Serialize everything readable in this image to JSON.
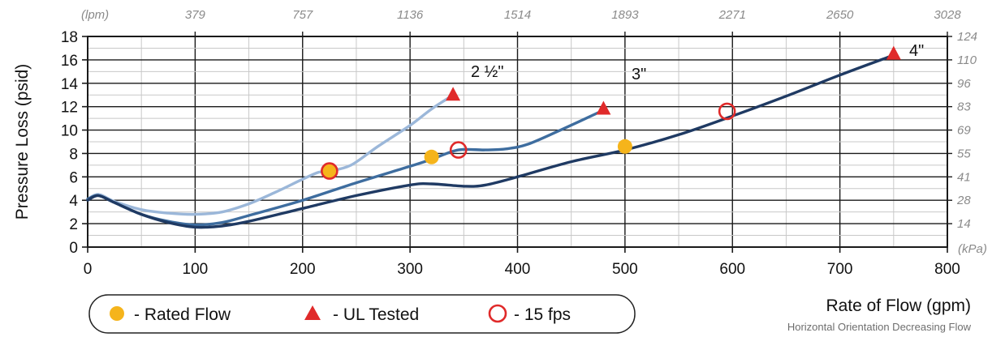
{
  "chart_data": {
    "type": "line",
    "xlabel": "Rate of Flow (gpm)",
    "ylabel": "Pressure Loss (psid)",
    "subtitle": "Horizontal Orientation Decreasing Flow",
    "x_range": [
      0,
      800
    ],
    "y_range": [
      0,
      18
    ],
    "x_ticks": [
      "0",
      "100",
      "200",
      "300",
      "400",
      "500",
      "600",
      "700",
      "800"
    ],
    "y_ticks": [
      "0",
      "2",
      "4",
      "6",
      "8",
      "10",
      "12",
      "14",
      "16",
      "18"
    ],
    "top_unit": "(lpm)",
    "top_ticks": [
      "379",
      "757",
      "1136",
      "1514",
      "1893",
      "2271",
      "2650",
      "3028"
    ],
    "right_unit": "(kPa)",
    "right_ticks": [
      "14",
      "28",
      "41",
      "55",
      "69",
      "83",
      "96",
      "110",
      "124"
    ],
    "grid": true,
    "series": [
      {
        "name": "2 ½\"",
        "color": "#9bb7d9",
        "points": [
          [
            0,
            4.1
          ],
          [
            10,
            4.5
          ],
          [
            25,
            3.9
          ],
          [
            50,
            3.2
          ],
          [
            75,
            2.9
          ],
          [
            100,
            2.8
          ],
          [
            125,
            3.0
          ],
          [
            150,
            3.7
          ],
          [
            175,
            4.7
          ],
          [
            200,
            5.8
          ],
          [
            215,
            6.4
          ],
          [
            225,
            6.5
          ],
          [
            245,
            7.0
          ],
          [
            270,
            8.6
          ],
          [
            300,
            10.4
          ],
          [
            320,
            11.8
          ],
          [
            340,
            13.0
          ]
        ]
      },
      {
        "name": "3\"",
        "color": "#3e6d9f",
        "points": [
          [
            0,
            4.1
          ],
          [
            10,
            4.4
          ],
          [
            25,
            3.8
          ],
          [
            50,
            2.8
          ],
          [
            75,
            2.2
          ],
          [
            100,
            1.9
          ],
          [
            125,
            2.1
          ],
          [
            150,
            2.7
          ],
          [
            200,
            4.0
          ],
          [
            250,
            5.5
          ],
          [
            300,
            6.9
          ],
          [
            320,
            7.5
          ],
          [
            345,
            8.3
          ],
          [
            370,
            8.3
          ],
          [
            390,
            8.4
          ],
          [
            410,
            8.8
          ],
          [
            440,
            10.0
          ],
          [
            480,
            11.7
          ]
        ]
      },
      {
        "name": "4\"",
        "color": "#1f3a63",
        "points": [
          [
            0,
            4.0
          ],
          [
            10,
            4.4
          ],
          [
            25,
            3.8
          ],
          [
            50,
            2.8
          ],
          [
            75,
            2.1
          ],
          [
            100,
            1.7
          ],
          [
            125,
            1.8
          ],
          [
            150,
            2.2
          ],
          [
            200,
            3.3
          ],
          [
            250,
            4.4
          ],
          [
            300,
            5.3
          ],
          [
            320,
            5.4
          ],
          [
            350,
            5.2
          ],
          [
            370,
            5.3
          ],
          [
            400,
            6.0
          ],
          [
            450,
            7.3
          ],
          [
            500,
            8.3
          ],
          [
            550,
            9.6
          ],
          [
            600,
            11.2
          ],
          [
            650,
            12.9
          ],
          [
            700,
            14.7
          ],
          [
            750,
            16.4
          ]
        ]
      }
    ],
    "markers": {
      "rated_flow": {
        "color": "#f5b41b",
        "points": [
          [
            225,
            6.5
          ],
          [
            320,
            7.7
          ],
          [
            500,
            8.6
          ]
        ]
      },
      "ul_tested": {
        "color": "#e02a2a",
        "points": [
          [
            340,
            13.0
          ],
          [
            480,
            11.8
          ],
          [
            750,
            16.5
          ]
        ]
      },
      "fps15": {
        "color": "#e02a2a",
        "points": [
          [
            225,
            6.5
          ],
          [
            345,
            8.3
          ],
          [
            595,
            11.6
          ]
        ]
      }
    },
    "series_labels": [
      "2 ½\"",
      "3\"",
      "4\""
    ],
    "legend": {
      "placement": "bottom-left",
      "entries": [
        "- Rated Flow",
        "- UL Tested",
        "- 15 fps"
      ]
    }
  }
}
